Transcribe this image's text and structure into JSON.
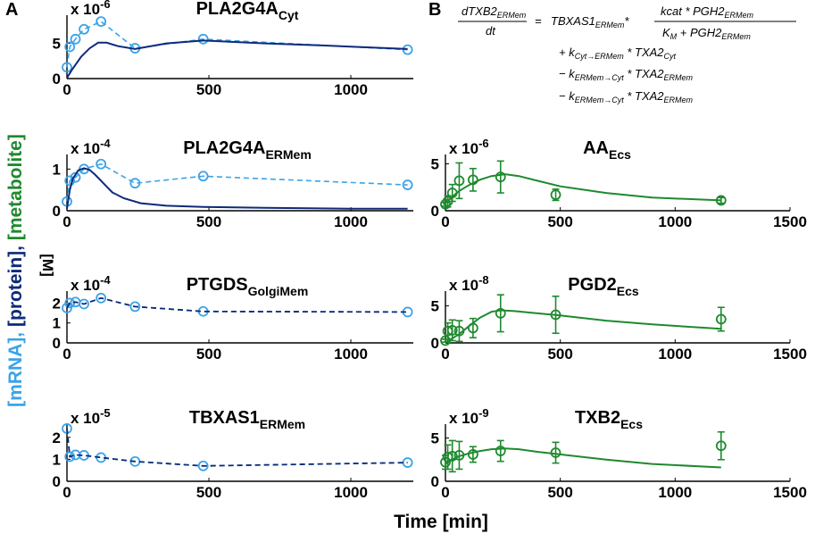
{
  "figure": {
    "panel_labels": [
      "A",
      "B"
    ],
    "y_label": {
      "mrna": "[mRNA],",
      "protein": "[protein],",
      "metabolite": "[metabolite]",
      "unit": "[M]"
    },
    "x_label": "Time [min]",
    "colors": {
      "mrna": "#3ba3e8",
      "protein": "#0d2a7a",
      "metabolite": "#1e8a2e",
      "axis": "#000000"
    },
    "equation": {
      "lhs_num": "dTXB2",
      "lhs_num_sub": "ERMem",
      "lhs_den": "dt",
      "eq": "=",
      "enz": "TBXAS1",
      "enz_sub": "ERMem",
      "star": "*",
      "frac_num": "kcat * PGH2",
      "frac_num_sub": "ERMem",
      "frac_den_a": "K",
      "frac_den_a_sub": "M",
      "frac_den_b": " + PGH2",
      "frac_den_b_sub": "ERMem",
      "t1_sign": "+ k",
      "t1_k_sub": "Cyt→ERMem",
      "t1_rest": " * TXA2",
      "t1_rest_sub": "Cyt",
      "t2_sign": "− k",
      "t2_k_sub": "ERMem→Cyt",
      "t2_rest": " * TXA2",
      "t2_rest_sub": "ERMem",
      "t3_sign": "− k",
      "t3_k_sub": "ERMem→Cyt",
      "t3_rest": " * TXA2",
      "t3_rest_sub": "ERMem"
    }
  },
  "chart_data": [
    {
      "id": "pla2g4a_cyt",
      "type": "line",
      "column": "A",
      "title": "PLA2G4A",
      "title_sub": "Cyt",
      "exponent": "-6",
      "xlim": [
        0,
        1220
      ],
      "ylim": [
        0,
        9
      ],
      "xticks": [
        0,
        500,
        1000
      ],
      "yticks": [
        0,
        5
      ],
      "series": [
        {
          "name": "mRNA",
          "style": "dashed-markers",
          "color": "#3ba3e8",
          "x": [
            0,
            10,
            30,
            60,
            120,
            240,
            480,
            1200
          ],
          "y": [
            1.6,
            4.5,
            5.6,
            7.0,
            8.1,
            4.3,
            5.6,
            4.1
          ]
        },
        {
          "name": "protein",
          "style": "solid",
          "color": "#0d2a7a",
          "x": [
            0,
            20,
            50,
            80,
            110,
            140,
            180,
            240,
            350,
            480,
            700,
            900,
            1200
          ],
          "y": [
            0.1,
            1.4,
            3.1,
            4.3,
            5.1,
            5.1,
            4.6,
            4.2,
            5.0,
            5.4,
            5.0,
            4.7,
            4.2
          ]
        }
      ]
    },
    {
      "id": "pla2g4a_ermem",
      "type": "line",
      "column": "A",
      "title": "PLA2G4A",
      "title_sub": "ERMem",
      "exponent": "-4",
      "xlim": [
        0,
        1220
      ],
      "ylim": [
        0,
        1.35
      ],
      "xticks": [
        0,
        500,
        1000
      ],
      "yticks": [
        0,
        1
      ],
      "series": [
        {
          "name": "mRNA",
          "style": "dashed-markers",
          "color": "#3ba3e8",
          "x": [
            0,
            10,
            30,
            60,
            120,
            240,
            480,
            1200
          ],
          "y": [
            0.22,
            0.72,
            0.8,
            1.0,
            1.12,
            0.66,
            0.83,
            0.62
          ]
        },
        {
          "name": "protein",
          "style": "solid",
          "color": "#0d2a7a",
          "x": [
            0,
            10,
            20,
            40,
            60,
            80,
            100,
            130,
            160,
            200,
            260,
            350,
            480,
            700,
            1000,
            1200
          ],
          "y": [
            0.05,
            0.5,
            0.76,
            0.97,
            1.02,
            0.98,
            0.86,
            0.65,
            0.44,
            0.3,
            0.18,
            0.12,
            0.09,
            0.07,
            0.05,
            0.05
          ]
        }
      ]
    },
    {
      "id": "ptgds_golgimem",
      "type": "line",
      "column": "A",
      "title": "PTGDS",
      "title_sub": "GolgiMem",
      "exponent": "-4",
      "xlim": [
        0,
        1220
      ],
      "ylim": [
        0,
        2.6
      ],
      "xticks": [
        0,
        500,
        1000
      ],
      "yticks": [
        0,
        1,
        2
      ],
      "series": [
        {
          "name": "mRNA",
          "style": "dashed-markers",
          "color": "#3ba3e8",
          "x": [
            0,
            10,
            30,
            60,
            120,
            240,
            480,
            1200
          ],
          "y": [
            1.75,
            2.0,
            2.05,
            1.95,
            2.25,
            1.82,
            1.58,
            1.55
          ]
        },
        {
          "name": "protein",
          "style": "dashed",
          "color": "#0d2a7a",
          "x": [
            0,
            10,
            30,
            60,
            120,
            240,
            480,
            1200
          ],
          "y": [
            1.75,
            2.0,
            2.05,
            1.95,
            2.25,
            1.82,
            1.58,
            1.55
          ]
        }
      ]
    },
    {
      "id": "tbxas1_ermem",
      "type": "line",
      "column": "A",
      "title": "TBXAS1",
      "title_sub": "ERMem",
      "exponent": "-5",
      "xlim": [
        0,
        1220
      ],
      "ylim": [
        0,
        2.6
      ],
      "xticks": [
        0,
        500,
        1000
      ],
      "yticks": [
        0,
        1,
        2
      ],
      "series": [
        {
          "name": "mRNA",
          "style": "dashed-markers",
          "color": "#3ba3e8",
          "x": [
            0,
            10,
            30,
            60,
            120,
            240,
            480,
            1200
          ],
          "y": [
            2.4,
            1.12,
            1.2,
            1.18,
            1.08,
            0.9,
            0.7,
            0.85
          ]
        },
        {
          "name": "protein",
          "style": "dashed",
          "color": "#0d2a7a",
          "x": [
            0,
            10,
            30,
            60,
            120,
            240,
            480,
            1200
          ],
          "y": [
            2.4,
            1.12,
            1.2,
            1.18,
            1.08,
            0.9,
            0.7,
            0.85
          ]
        }
      ]
    },
    {
      "id": "aa_ecs",
      "type": "line",
      "column": "B",
      "title": "AA",
      "title_sub": "Ecs",
      "exponent": "-6",
      "xlim": [
        0,
        1500
      ],
      "ylim": [
        0,
        6
      ],
      "xticks": [
        0,
        500,
        1000,
        1500
      ],
      "yticks": [
        0,
        5
      ],
      "series": [
        {
          "name": "metabolite data",
          "style": "markers-errorbars",
          "color": "#1e8a2e",
          "x": [
            0,
            10,
            30,
            60,
            120,
            240,
            480,
            1200
          ],
          "y": [
            0.7,
            1.0,
            1.9,
            3.2,
            3.3,
            3.6,
            1.7,
            1.1
          ],
          "err": [
            0.2,
            0.6,
            0.9,
            1.9,
            1.2,
            1.7,
            0.6,
            0.3
          ]
        },
        {
          "name": "metabolite model",
          "style": "solid",
          "color": "#1e8a2e",
          "x": [
            0,
            30,
            60,
            100,
            150,
            200,
            260,
            320,
            400,
            500,
            700,
            900,
            1200
          ],
          "y": [
            0.8,
            1.5,
            2.1,
            2.7,
            3.3,
            3.7,
            3.9,
            3.7,
            3.2,
            2.6,
            1.9,
            1.4,
            1.1
          ]
        }
      ]
    },
    {
      "id": "pgd2_ecs",
      "type": "line",
      "column": "B",
      "title": "PGD2",
      "title_sub": "Ecs",
      "exponent": "-8",
      "xlim": [
        0,
        1500
      ],
      "ylim": [
        0,
        7
      ],
      "xticks": [
        0,
        500,
        1000,
        1500
      ],
      "yticks": [
        0,
        5
      ],
      "series": [
        {
          "name": "metabolite data",
          "style": "markers-errorbars",
          "color": "#1e8a2e",
          "x": [
            0,
            10,
            30,
            60,
            120,
            240,
            480,
            1200
          ],
          "y": [
            0.3,
            1.6,
            1.7,
            1.6,
            2.0,
            4.0,
            3.8,
            3.2
          ],
          "err": [
            0.2,
            1.1,
            1.4,
            1.4,
            1.3,
            2.5,
            2.5,
            1.6
          ]
        },
        {
          "name": "metabolite model",
          "style": "solid",
          "color": "#1e8a2e",
          "x": [
            0,
            30,
            60,
            100,
            150,
            200,
            240,
            300,
            400,
            500,
            700,
            900,
            1200
          ],
          "y": [
            0.1,
            0.6,
            1.2,
            2.2,
            3.4,
            4.2,
            4.4,
            4.3,
            4.0,
            3.7,
            3.0,
            2.5,
            1.9
          ]
        }
      ]
    },
    {
      "id": "txb2_ecs",
      "type": "line",
      "column": "B",
      "title": "TXB2",
      "title_sub": "Ecs",
      "exponent": "-9",
      "xlim": [
        0,
        1500
      ],
      "ylim": [
        0,
        6.6
      ],
      "xticks": [
        0,
        500,
        1000,
        1500
      ],
      "yticks": [
        0,
        5
      ],
      "series": [
        {
          "name": "metabolite data",
          "style": "markers-errorbars",
          "color": "#1e8a2e",
          "x": [
            0,
            10,
            30,
            60,
            120,
            240,
            480,
            1200
          ],
          "y": [
            2.2,
            2.8,
            2.9,
            3.0,
            3.1,
            3.5,
            3.3,
            4.1
          ],
          "err": [
            0.8,
            1.4,
            1.8,
            1.6,
            0.9,
            1.2,
            1.2,
            1.6
          ]
        },
        {
          "name": "metabolite model",
          "style": "solid",
          "color": "#1e8a2e",
          "x": [
            0,
            30,
            60,
            100,
            150,
            200,
            260,
            320,
            400,
            500,
            700,
            900,
            1200
          ],
          "y": [
            2.0,
            2.5,
            2.9,
            3.2,
            3.5,
            3.7,
            3.8,
            3.7,
            3.4,
            3.1,
            2.5,
            2.0,
            1.6
          ]
        }
      ]
    }
  ]
}
